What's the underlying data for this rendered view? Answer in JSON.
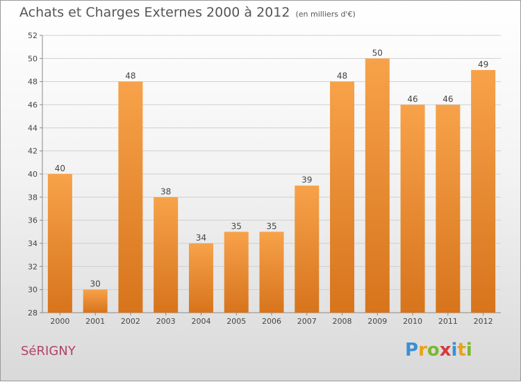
{
  "title": "Achats et Charges Externes 2000 à 2012",
  "unit_note": "(en milliers d'€)",
  "commune": "SéRIGNY",
  "logo": {
    "text": "Proxiti",
    "letters": [
      {
        "char": "P",
        "color": "#3a8fd6"
      },
      {
        "char": "r",
        "color": "#e8a317"
      },
      {
        "char": "o",
        "color": "#7cb82f"
      },
      {
        "char": "x",
        "color": "#d63a3a"
      },
      {
        "char": "i",
        "color": "#3a8fd6"
      },
      {
        "char": "t",
        "color": "#e8a317"
      },
      {
        "char": "i",
        "color": "#7cb82f"
      }
    ]
  },
  "colors": {
    "bar_top": "#f7a24a",
    "bar_bottom": "#d7741c",
    "grid": "#cfcfcf",
    "axis": "#888888"
  },
  "chart_data": {
    "type": "bar",
    "title": "Achats et Charges Externes 2000 à 2012",
    "categories": [
      "2000",
      "2001",
      "2002",
      "2003",
      "2004",
      "2005",
      "2006",
      "2007",
      "2008",
      "2009",
      "2010",
      "2011",
      "2012"
    ],
    "values": [
      40,
      30,
      48,
      38,
      34,
      35,
      35,
      39,
      48,
      50,
      46,
      46,
      49
    ],
    "data_labels": [
      "40",
      "30",
      "48",
      "38",
      "34",
      "35",
      "35",
      "39",
      "48",
      "50",
      "46",
      "46",
      "49"
    ],
    "ylim": [
      28,
      52
    ],
    "yticks": [
      28,
      30,
      32,
      34,
      36,
      38,
      40,
      42,
      44,
      46,
      48,
      50,
      52
    ],
    "grid": true,
    "legend": "none"
  }
}
